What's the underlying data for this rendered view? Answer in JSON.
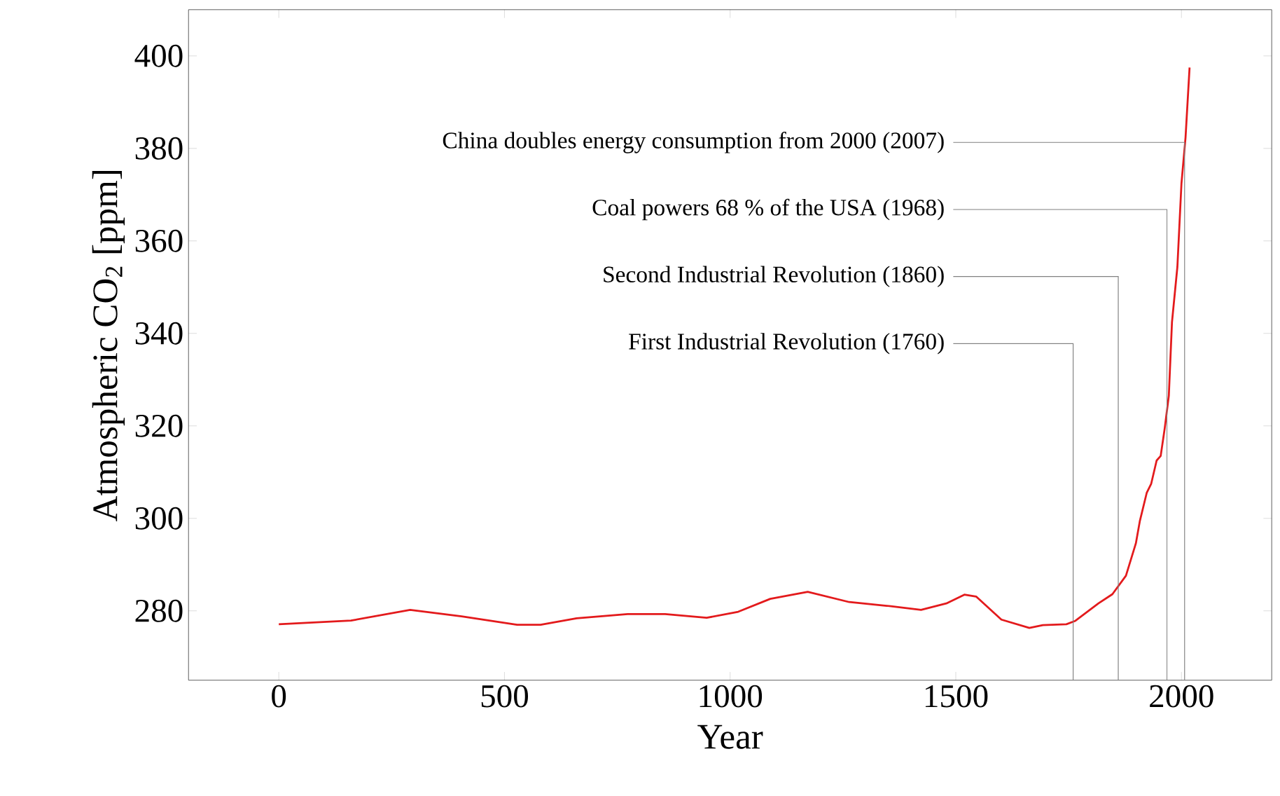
{
  "chart_data": {
    "type": "line",
    "xlabel": "Year",
    "ylabel": "Atmospheric CO$_{2}$ [ppm]",
    "xlim": [
      -200,
      2200
    ],
    "ylim": [
      265,
      410
    ],
    "xticks": [
      0,
      500,
      1000,
      1500,
      2000
    ],
    "yticks": [
      280,
      300,
      320,
      340,
      360,
      380,
      400
    ],
    "grid": false,
    "series": [
      {
        "color": "#e31a1c",
        "x": [
          0,
          160,
          291,
          405,
          528,
          580,
          660,
          773,
          856,
          948,
          1018,
          1089,
          1172,
          1264,
          1347,
          1423,
          1479,
          1519,
          1545,
          1601,
          1663,
          1693,
          1745,
          1764,
          1816,
          1847,
          1877,
          1899,
          1908,
          1923,
          1933,
          1945,
          1954,
          1963,
          1972,
          1979,
          1991,
          2000,
          2009,
          2018
        ],
        "values": [
          277.1,
          277.9,
          280.2,
          278.8,
          277.0,
          277.0,
          278.4,
          279.3,
          279.3,
          278.5,
          279.8,
          282.6,
          284.1,
          281.9,
          281.1,
          280.2,
          281.6,
          283.5,
          283.1,
          278.1,
          276.3,
          276.9,
          277.1,
          277.8,
          281.6,
          283.6,
          287.6,
          294.6,
          299.5,
          305.5,
          307.5,
          312.5,
          313.5,
          319.5,
          326.5,
          342.4,
          354.4,
          372.4,
          382.3,
          397.5
        ]
      }
    ],
    "ref_lines": [
      {
        "axis": "x",
        "value": 1760,
        "label": "First Industrial Revolution (1760)",
        "color": "#808080"
      },
      {
        "axis": "x",
        "value": 1860,
        "label": "Second Industrial Revolution (1860)",
        "color": "#808080"
      },
      {
        "axis": "x",
        "value": 1968,
        "label": "Coal powers 68 % of the USA (1968)",
        "color": "#808080"
      },
      {
        "axis": "x",
        "value": 2007,
        "label": "China doubles energy consumption from 2000 (2007)",
        "color": "#808080"
      }
    ]
  }
}
